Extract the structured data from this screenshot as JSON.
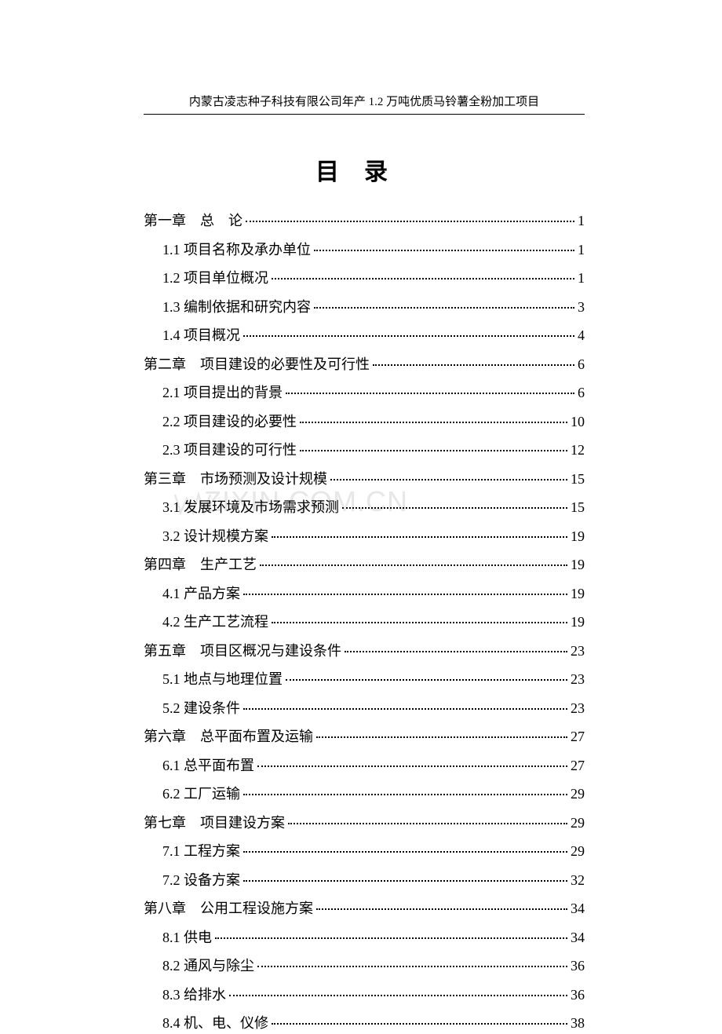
{
  "header": "内蒙古凌志种子科技有限公司年产 1.2 万吨优质马铃薯全粉加工项目",
  "title": "目录",
  "watermark_text": "ZIXIN.COM.CN",
  "toc": [
    {
      "type": "chapter",
      "label": "第一章　总　论",
      "page": "1"
    },
    {
      "type": "section",
      "label": "1.1 项目名称及承办单位",
      "page": "1"
    },
    {
      "type": "section",
      "label": "1.2  项目单位概况",
      "page": "1"
    },
    {
      "type": "section",
      "label": "1.3  编制依据和研究内容",
      "page": "3"
    },
    {
      "type": "section",
      "label": "1.4 项目概况",
      "page": "4"
    },
    {
      "type": "chapter",
      "label": "第二章　项目建设的必要性及可行性",
      "page": "6"
    },
    {
      "type": "section",
      "label": "2.1 项目提出的背景",
      "page": "6"
    },
    {
      "type": "section",
      "label": "2.2 项目建设的必要性",
      "page": "10"
    },
    {
      "type": "section",
      "label": "2.3 项目建设的可行性",
      "page": "12"
    },
    {
      "type": "chapter",
      "label": "第三章　市场预测及设计规模",
      "page": "15"
    },
    {
      "type": "section",
      "label": "3.1 发展环境及市场需求预测",
      "page": "15"
    },
    {
      "type": "section",
      "label": "3.2 设计规模方案",
      "page": "19"
    },
    {
      "type": "chapter",
      "label": "第四章　生产工艺",
      "page": "19"
    },
    {
      "type": "section",
      "label": "4.1 产品方案",
      "page": "19"
    },
    {
      "type": "section",
      "label": "4.2  生产工艺流程",
      "page": "19"
    },
    {
      "type": "chapter",
      "label": "第五章　项目区概况与建设条件",
      "page": "23"
    },
    {
      "type": "section",
      "label": "5.1 地点与地理位置",
      "page": "23"
    },
    {
      "type": "section",
      "label": "5.2 建设条件",
      "page": "23"
    },
    {
      "type": "chapter",
      "label": "第六章　总平面布置及运输",
      "page": "27"
    },
    {
      "type": "section",
      "label": "6.1 总平面布置",
      "page": "27"
    },
    {
      "type": "section",
      "label": "6.2 工厂运输",
      "page": "29"
    },
    {
      "type": "chapter",
      "label": "第七章　项目建设方案",
      "page": "29"
    },
    {
      "type": "section",
      "label": "7.1 工程方案",
      "page": "29"
    },
    {
      "type": "section",
      "label": "7.2 设备方案",
      "page": "32"
    },
    {
      "type": "chapter",
      "label": "第八章　公用工程设施方案",
      "page": "34"
    },
    {
      "type": "section",
      "label": "8.1 供电",
      "page": "34"
    },
    {
      "type": "section",
      "label": "8.2 通风与除尘",
      "page": "36"
    },
    {
      "type": "section",
      "label": "8.3 给排水",
      "page": "36"
    },
    {
      "type": "section",
      "label": "8.4 机、电、仪修",
      "page": "38"
    }
  ]
}
